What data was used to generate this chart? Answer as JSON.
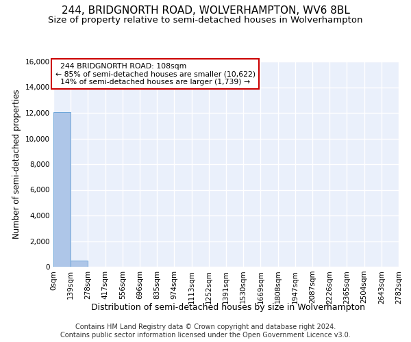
{
  "title1": "244, BRIDGNORTH ROAD, WOLVERHAMPTON, WV6 8BL",
  "title2": "Size of property relative to semi-detached houses in Wolverhampton",
  "xlabel": "Distribution of semi-detached houses by size in Wolverhampton",
  "ylabel": "Number of semi-detached properties",
  "footnote": "Contains HM Land Registry data © Crown copyright and database right 2024.\nContains public sector information licensed under the Open Government Licence v3.0.",
  "bin_edges": [
    0,
    139,
    278,
    417,
    556,
    696,
    835,
    974,
    1113,
    1252,
    1391,
    1530,
    1669,
    1808,
    1947,
    2087,
    2226,
    2365,
    2504,
    2643,
    2782
  ],
  "bar_heights": [
    12050,
    490,
    25,
    15,
    10,
    8,
    5,
    5,
    4,
    3,
    2,
    2,
    2,
    2,
    1,
    1,
    1,
    1,
    1,
    1
  ],
  "bar_color": "#aec6e8",
  "bar_edge_color": "#5b9bd5",
  "bg_color": "#eaf0fb",
  "grid_color": "#ffffff",
  "ylim": [
    0,
    16000
  ],
  "yticks": [
    0,
    2000,
    4000,
    6000,
    8000,
    10000,
    12000,
    14000,
    16000
  ],
  "property_label": "244 BRIDGNORTH ROAD: 108sqm",
  "pct_smaller": 85,
  "count_smaller": 10622,
  "pct_larger": 14,
  "count_larger": 1739,
  "annotation_box_color": "#cc0000",
  "title1_fontsize": 11,
  "title2_fontsize": 9.5,
  "ylabel_fontsize": 8.5,
  "xlabel_fontsize": 9,
  "tick_fontsize": 7.5,
  "ann_fontsize": 7.8,
  "footnote_fontsize": 7
}
